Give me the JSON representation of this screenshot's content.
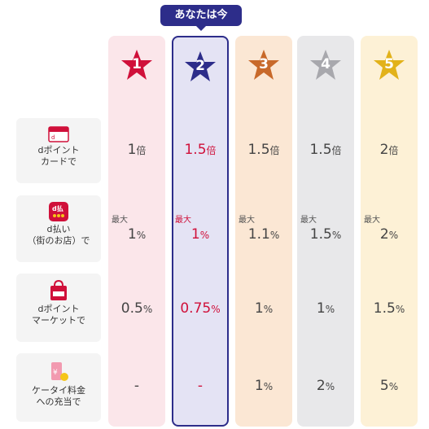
{
  "current_badge": "あなたは今",
  "ranks": [
    {
      "num": "1",
      "color": "#fbe6ea",
      "star": "#d0103a"
    },
    {
      "num": "2",
      "color": "#e4e3f4",
      "star": "#2d2d8a"
    },
    {
      "num": "3",
      "color": "#fbe7d4",
      "star": "#c8692a"
    },
    {
      "num": "4",
      "color": "#e8e8ea",
      "star": "#a8a8ad"
    },
    {
      "num": "5",
      "color": "#fdf1d6",
      "star": "#e2b21a"
    }
  ],
  "current_rank_index": 1,
  "rows": [
    {
      "label": "dポイント\nカードで",
      "icon": "d-card-icon",
      "cells": [
        {
          "value": "1",
          "unit": "倍"
        },
        {
          "value": "1.5",
          "unit": "倍"
        },
        {
          "value": "1.5",
          "unit": "倍"
        },
        {
          "value": "1.5",
          "unit": "倍"
        },
        {
          "value": "2",
          "unit": "倍"
        }
      ]
    },
    {
      "label": "d払い\n（街のお店）で",
      "icon": "d-barai-icon",
      "cells": [
        {
          "max": "最大",
          "value": "1",
          "unit": "%"
        },
        {
          "max": "最大",
          "value": "1",
          "unit": "%"
        },
        {
          "max": "最大",
          "value": "1.1",
          "unit": "%"
        },
        {
          "max": "最大",
          "value": "1.5",
          "unit": "%"
        },
        {
          "max": "最大",
          "value": "2",
          "unit": "%"
        }
      ]
    },
    {
      "label": "dポイント\nマーケットで",
      "icon": "d-market-icon",
      "cells": [
        {
          "value": "0.5",
          "unit": "%"
        },
        {
          "value": "0.75",
          "unit": "%"
        },
        {
          "value": "1",
          "unit": "%"
        },
        {
          "value": "1",
          "unit": "%"
        },
        {
          "value": "1.5",
          "unit": "%"
        }
      ]
    },
    {
      "label": "ケータイ料金\nへの充当で",
      "icon": "mobile-fee-icon",
      "cells": [
        {
          "value": "-",
          "unit": ""
        },
        {
          "value": "-",
          "unit": ""
        },
        {
          "value": "1",
          "unit": "%"
        },
        {
          "value": "2",
          "unit": "%"
        },
        {
          "value": "5",
          "unit": "%"
        }
      ]
    }
  ]
}
